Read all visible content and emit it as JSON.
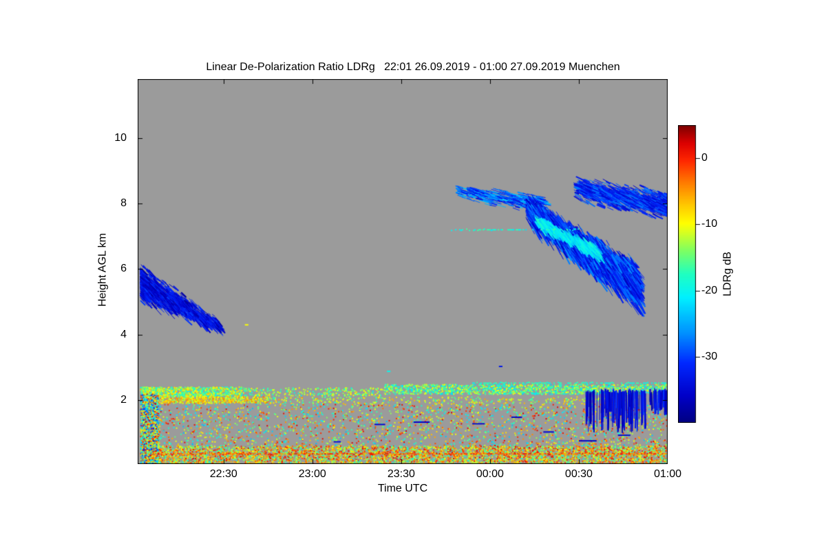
{
  "chart_data": {
    "type": "heatmap",
    "title": "Linear De-Polarization Ratio LDRg   22:01 26.09.2019 - 01:00 27.09.2019 Muenchen",
    "xlabel": "Time UTC",
    "ylabel": "Height AGL km",
    "x_ticks": [
      {
        "label": "22:30",
        "hour": 22.5
      },
      {
        "label": "23:00",
        "hour": 23.0
      },
      {
        "label": "23:30",
        "hour": 23.5
      },
      {
        "label": "00:00",
        "hour": 24.0
      },
      {
        "label": "00:30",
        "hour": 24.5
      },
      {
        "label": "01:00",
        "hour": 25.0
      }
    ],
    "x_range_hours": [
      22.0167,
      25.0
    ],
    "y_ticks": [
      {
        "label": "2",
        "km": 2
      },
      {
        "label": "4",
        "km": 4
      },
      {
        "label": "6",
        "km": 6
      },
      {
        "label": "8",
        "km": 8
      },
      {
        "label": "10",
        "km": 10
      }
    ],
    "y_range_km": [
      0.05,
      11.8
    ],
    "background_color": "#9b9b9b",
    "grid": false,
    "colorbar": {
      "label": "LDRg dB",
      "ticks": [
        {
          "label": "0",
          "value": 0
        },
        {
          "label": "-10",
          "value": -10
        },
        {
          "label": "-20",
          "value": -20
        },
        {
          "label": "-30",
          "value": -30
        }
      ],
      "value_range": [
        -40,
        5
      ],
      "colormap": [
        [
          0.0,
          "#000082"
        ],
        [
          0.09,
          "#0000c8"
        ],
        [
          0.2,
          "#0028ff"
        ],
        [
          0.3,
          "#0090ff"
        ],
        [
          0.42,
          "#00f0ff"
        ],
        [
          0.5,
          "#20ffc0"
        ],
        [
          0.58,
          "#80ff60"
        ],
        [
          0.64,
          "#d8ff20"
        ],
        [
          0.67,
          "#ffff00"
        ],
        [
          0.74,
          "#ffc000"
        ],
        [
          0.81,
          "#ff7800"
        ],
        [
          0.88,
          "#ff2800"
        ],
        [
          0.94,
          "#dc0000"
        ],
        [
          1.0,
          "#7c0000"
        ]
      ]
    },
    "features": [
      {
        "name": "left-virga-cloud",
        "type": "streaks",
        "desc": "Dark-blue fallstreak cloud just after 22:01, top ~6.3 km sloping down to ~4.2 km by ~22:25",
        "t0": 22.03,
        "t1": 22.47,
        "hc0": 5.6,
        "hc1": 4.3,
        "sp0": 0.68,
        "sp1": 0.25,
        "count": 1300,
        "seg": 8,
        "slope": 1.0,
        "v0": -38,
        "v1": -30,
        "bias": "start"
      },
      {
        "name": "cirrus-patch-west",
        "type": "streaks",
        "desc": "Thin scattered blue/cyan cirrus streaks 7.7-8.8 km between ~23:50 and ~00:20",
        "t0": 23.8,
        "t1": 24.3,
        "hc0": 8.4,
        "hc1": 8.0,
        "sp0": 0.3,
        "sp1": 0.32,
        "count": 430,
        "seg": 10,
        "slope": 0.3,
        "v0": -34,
        "v1": -23
      },
      {
        "name": "cirrus-main-mass",
        "type": "streaks",
        "desc": "Dense blue cirrus fallstreak mass descending from ~8.4 km at 00:15 to ~4.8 km at 00:45",
        "t0": 24.2,
        "t1": 24.82,
        "hc0": 7.9,
        "hc1": 5.6,
        "sp0": 0.5,
        "sp1": 0.8,
        "count": 4200,
        "seg": 11,
        "slope": 1.5,
        "v0": -37,
        "v1": -26
      },
      {
        "name": "cirrus-cyan-fringe",
        "type": "streaks",
        "desc": "Cyan/light-blue fringe along upper-left edge of the main cirrus mass",
        "t0": 24.25,
        "t1": 24.6,
        "hc0": 7.55,
        "hc1": 6.6,
        "sp0": 0.2,
        "sp1": 0.25,
        "count": 430,
        "seg": 9,
        "slope": 1.3,
        "v0": -24,
        "v1": -18
      },
      {
        "name": "cirrus-upper-right",
        "type": "streaks",
        "desc": "Blue cirrus streaks 7.4-9.1 km from ~00:30 to 01:00",
        "t0": 24.47,
        "t1": 25.02,
        "hc0": 8.5,
        "hc1": 7.95,
        "sp0": 0.42,
        "sp1": 0.55,
        "count": 1200,
        "seg": 10,
        "slope": 0.5,
        "v0": -36,
        "v1": -27
      },
      {
        "name": "cyan-line-7km",
        "type": "hline",
        "desc": "Thin broken cyan/green line near 7.2 km from ~23:45 to ~00:30",
        "t0": 23.78,
        "t1": 24.5,
        "h": 7.2,
        "thick": 2,
        "v0": -22,
        "v1": -16,
        "gap": 0.45
      },
      {
        "name": "layer-top-band-early",
        "type": "speckle",
        "desc": "Yellow/green/cyan speckled layer top 2.1-2.4 km, 22:01-22:35",
        "t0": 22.03,
        "t1": 22.6,
        "h0": 2.12,
        "h1": 2.42,
        "count": 950,
        "v0": -21,
        "v1": -6,
        "px": 2
      },
      {
        "name": "layer-top-band-mid",
        "type": "speckle",
        "desc": "Sparser layer-top speckle 22:35-23:25",
        "t0": 22.6,
        "t1": 23.4,
        "h0": 2.15,
        "h1": 2.4,
        "count": 300,
        "v0": -21,
        "v1": -8,
        "px": 2
      },
      {
        "name": "layer-top-band-late",
        "type": "speckle",
        "desc": "Dense cyan/green layer-top band 2.2-2.5 km from 23:25 to 01:00",
        "t0": 23.4,
        "t1": 25.02,
        "h0": 2.2,
        "h1": 2.5,
        "count": 1700,
        "v0": -23,
        "v1": -9,
        "px": 2
      },
      {
        "name": "layer-top-cyan-line",
        "type": "hline",
        "desc": "Cyan line at ~2.5 km after 23:55",
        "t0": 23.9,
        "t1": 25.0,
        "h": 2.52,
        "thick": 2,
        "v0": -21,
        "v1": -16,
        "gap": 0.4
      },
      {
        "name": "second-band-early",
        "type": "speckle",
        "desc": "Yellow/orange speckle band near 2.0 km before 22:45",
        "t0": 22.05,
        "t1": 22.75,
        "h0": 1.92,
        "h1": 2.12,
        "count": 600,
        "v0": -15,
        "v1": -3,
        "px": 2
      },
      {
        "name": "second-band-late",
        "type": "speckle",
        "desc": "Sparse green/yellow speckle near 2.0 km after 22:45",
        "t0": 22.75,
        "t1": 25.0,
        "h0": 1.9,
        "h1": 2.12,
        "count": 420,
        "v0": -18,
        "v1": -5,
        "px": 2
      },
      {
        "name": "mid-level-noise",
        "type": "speckle",
        "desc": "Sparse mixed-colour noise speckle 0.6-1.9 km",
        "t0": 22.03,
        "t1": 25.02,
        "h0": 0.62,
        "h1": 1.9,
        "count": 2100,
        "v0": -24,
        "v1": 2,
        "px": 2
      },
      {
        "name": "surface-noise",
        "type": "speckle",
        "desc": "Dense green/yellow/red speckle below 0.6 km",
        "t0": 22.03,
        "t1": 25.02,
        "h0": 0.05,
        "h1": 0.62,
        "count": 5200,
        "v0": -19,
        "v1": 2,
        "px": 2
      },
      {
        "name": "surface-red-line",
        "type": "hline",
        "desc": "Near-continuous orange/red line at ~0.35 km",
        "t0": 22.03,
        "t1": 25.02,
        "h": 0.36,
        "thick": 2,
        "v0": -7,
        "v1": 2,
        "gap": 0.1
      },
      {
        "name": "start-column",
        "type": "speckle",
        "desc": "Dense multicolour column below 2.2 km at the very start (22:01-22:07)",
        "t0": 22.03,
        "t1": 22.13,
        "h0": 0.05,
        "h1": 2.2,
        "count": 1500,
        "v0": -32,
        "v1": 3,
        "px": 2
      },
      {
        "name": "blue-virga-00-40",
        "type": "vstreaks",
        "desc": "Dark-blue vertical virga streaks below the 2.2 km layer, 00:33-00:52",
        "t0": 24.54,
        "t1": 24.88,
        "htop": 2.28,
        "hb0": 1.0,
        "hb1": 1.8,
        "count": 120,
        "v0": -38,
        "v1": -31
      },
      {
        "name": "blue-virga-00-55",
        "type": "vstreaks",
        "desc": "Second dark-blue streak cluster 00:55-01:00",
        "t0": 24.9,
        "t1": 25.01,
        "htop": 2.3,
        "hb0": 1.5,
        "hb1": 1.95,
        "count": 50,
        "v0": -38,
        "v1": -31
      },
      {
        "name": "blue-dashes",
        "type": "dashes",
        "desc": "Isolated dark-blue horizontal dashes at low levels",
        "items": [
          [
            23.35,
            1.28,
            0.06,
            -35
          ],
          [
            23.57,
            1.35,
            0.09,
            -36
          ],
          [
            23.9,
            1.3,
            0.07,
            -35
          ],
          [
            24.12,
            1.5,
            0.06,
            -36
          ],
          [
            24.3,
            1.05,
            0.06,
            -35
          ],
          [
            24.5,
            0.78,
            0.1,
            -36
          ],
          [
            24.72,
            0.95,
            0.07,
            -35
          ],
          [
            23.12,
            0.75,
            0.04,
            -34
          ]
        ]
      },
      {
        "name": "isolated-specks",
        "type": "dashes",
        "desc": "A few isolated specks above the boundary layer",
        "items": [
          [
            22.62,
            4.32,
            0.02,
            -10
          ],
          [
            23.42,
            2.9,
            0.02,
            -20
          ],
          [
            24.05,
            3.05,
            0.02,
            -33
          ]
        ]
      }
    ]
  }
}
